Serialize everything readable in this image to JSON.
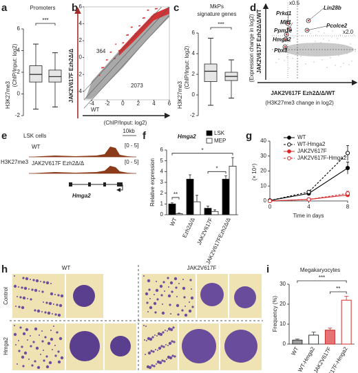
{
  "figure": {
    "a": {
      "label": "a",
      "title": "Promoters",
      "significance": "***",
      "ylabel": [
        "H3K27me3",
        "(ChIP/Input: log2)"
      ],
      "ylabel_colors": [
        "#b22222",
        "#222222"
      ],
      "ylim": [
        -2,
        6
      ],
      "yticks": [
        -2,
        0,
        2,
        4,
        6
      ],
      "color": "#e6e6e6",
      "boxes": [
        {
          "min": -1.4,
          "q1": 1.1,
          "median": 1.8,
          "q3": 2.6,
          "max": 4.6
        },
        {
          "min": -1.2,
          "q1": 1.1,
          "median": 1.6,
          "q3": 2.2,
          "max": 3.8
        }
      ]
    },
    "b": {
      "label": "b",
      "xlabel": "WT",
      "axis_unit": "(ChIP/Input: log2)",
      "ylabel": "JAK2V617F Ezh2Δ/Δ",
      "up_count": 364,
      "down_count": 2073,
      "xlim": [
        -5,
        6
      ],
      "ylim": [
        -5,
        6
      ],
      "xticks": [
        -4,
        -2,
        0,
        2,
        4,
        6
      ],
      "yticks": [
        -4,
        -2,
        0,
        2,
        4,
        6
      ],
      "highlight_color": "#d62728"
    },
    "c": {
      "label": "c",
      "title": [
        "MkPs",
        "signature genes"
      ],
      "significance": "***",
      "ylabel": [
        "H3K27me3",
        "(ChIP/Input: log2)"
      ],
      "ylabel_colors": [
        "#b22222",
        "#222222"
      ],
      "ylim": [
        -2,
        6
      ],
      "yticks": [
        -2,
        0,
        2,
        4,
        6
      ],
      "color": "#e6e6e6",
      "boxes": [
        {
          "min": -1.0,
          "q1": 1.3,
          "median": 2.3,
          "q3": 3.0,
          "max": 5.5
        },
        {
          "min": -0.3,
          "q1": 1.4,
          "median": 1.8,
          "q3": 2.2,
          "max": 3.4
        }
      ]
    },
    "d": {
      "label": "d",
      "ylabel": [
        "(Expression change in log2)",
        "JAK2V617F Ezh2Δ/Δ/WT"
      ],
      "xlabel": [
        "JAK2V617F Ezh2Δ/Δ/WT",
        "(H3K27me3 change in log2)"
      ],
      "genes": [
        "Prkd1",
        "Mlf1",
        "Ppm1e",
        "Hmga2",
        "Pbx3",
        "Lin28b",
        "Pcolce2"
      ],
      "thresholds": [
        "x0.5",
        "x2.0"
      ]
    },
    "e": {
      "label": "e",
      "title": "LSK cells",
      "scale": "10kb",
      "mark": "H3K27me3",
      "tracks": [
        {
          "name": "WT",
          "range": "[0 - 5]"
        },
        {
          "name": "JAK2V617F Ezh2Δ/Δ",
          "range": "[0 - 5]"
        }
      ],
      "gene": "Hmga2"
    },
    "f": {
      "label": "f",
      "title": "Hmga2",
      "ylabel": "Relative expression",
      "categories": [
        "WT",
        "Ezh2Δ/Δ",
        "JAK2V617F",
        "JAK2V617FEzh2Δ/Δ"
      ],
      "series": [
        {
          "name": "LSK",
          "color": "#000000",
          "values": [
            1,
            3.3,
            0.6,
            3.3
          ],
          "errors": [
            0.1,
            0.4,
            0.2,
            0.3
          ]
        },
        {
          "name": "MEP",
          "color": "#ffffff",
          "values": [
            0.1,
            1.2,
            0.3,
            4.5
          ],
          "errors": [
            0.05,
            0.6,
            0.15,
            0.8
          ]
        }
      ],
      "ylim": [
        0,
        6
      ],
      "yticks": [
        0,
        1,
        2,
        3,
        4,
        5,
        6
      ],
      "significance": [
        "**",
        "*",
        "*"
      ]
    },
    "g": {
      "label": "g",
      "type": "line",
      "ylabel": "(× 10⁴)",
      "xlabel": "Time in days",
      "x": [
        0,
        4,
        8
      ],
      "series": [
        {
          "name": "WT",
          "color": "#000000",
          "line_style": "solid",
          "marker": "filled",
          "values": [
            0.3,
            5,
            22
          ],
          "errors": [
            0.2,
            1,
            4
          ]
        },
        {
          "name": "WT-Hmga2",
          "color": "#000000",
          "line_style": "dashed",
          "marker": "open",
          "values": [
            0.3,
            6,
            32
          ],
          "errors": [
            0.2,
            1,
            5
          ]
        },
        {
          "name": "JAK2V617F",
          "color": "#d62728",
          "line_style": "solid",
          "marker": "filled",
          "values": [
            0,
            1,
            4
          ],
          "errors": [
            0.1,
            0.4,
            1
          ]
        },
        {
          "name": "JAK2V617F-Hmga2",
          "color": "#d62728",
          "line_style": "dashed",
          "marker": "open",
          "values": [
            0,
            1,
            5
          ],
          "errors": [
            0.1,
            0.4,
            1.5
          ]
        }
      ],
      "xlim": [
        0,
        8
      ],
      "xticks": [
        0,
        4,
        8
      ],
      "ylim": [
        0,
        40
      ],
      "yticks": [
        0,
        10,
        20,
        30,
        40
      ]
    },
    "h": {
      "label": "h",
      "columns": [
        "WT",
        "JAK2V617F"
      ],
      "rows": [
        "Control",
        "Hmga2"
      ]
    },
    "i": {
      "label": "i",
      "title": "Megakaryocytes",
      "ylabel": "Frequency (%)",
      "categories": [
        "WT",
        "WT-Hmga2",
        "JAK2V617F",
        "JAK2V617F-Hmga2"
      ],
      "values": [
        2,
        4.5,
        7,
        22
      ],
      "errors": [
        0.5,
        1.5,
        1,
        2
      ],
      "colors": [
        "#9e9e9e",
        "#ffffff",
        "#e57373",
        "#ffffff"
      ],
      "edge_colors": [
        "#333333",
        "#333333",
        "#c62828",
        "#d62728"
      ],
      "ylim": [
        0,
        30
      ],
      "yticks": [
        0,
        10,
        20,
        30
      ],
      "significance": [
        "***",
        "**"
      ]
    }
  }
}
